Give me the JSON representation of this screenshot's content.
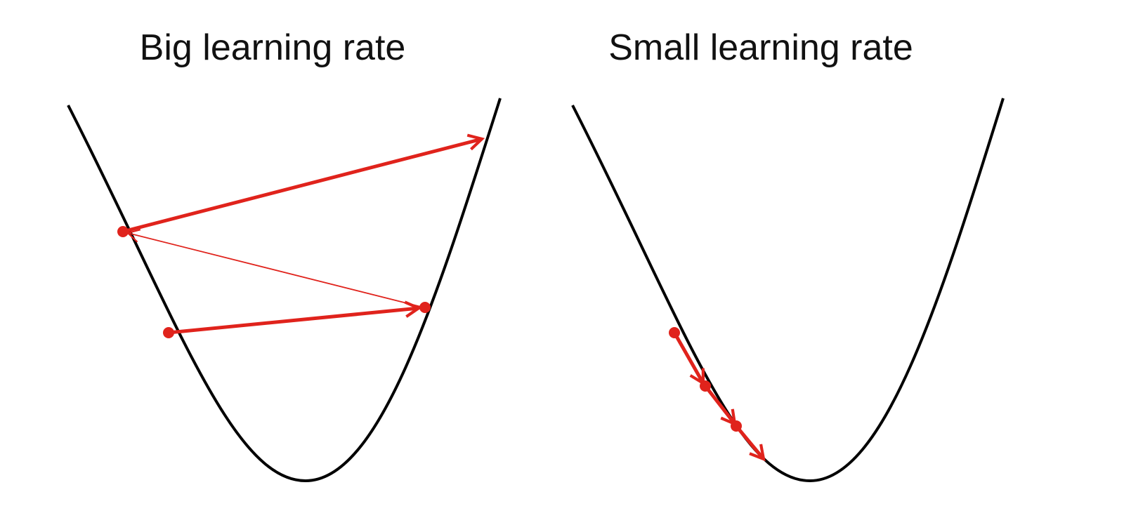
{
  "panels": [
    {
      "title": "Big learning rate"
    },
    {
      "title": "Small learning rate"
    }
  ],
  "colors": {
    "curve": "#000000",
    "steps": "#e0231c"
  }
}
